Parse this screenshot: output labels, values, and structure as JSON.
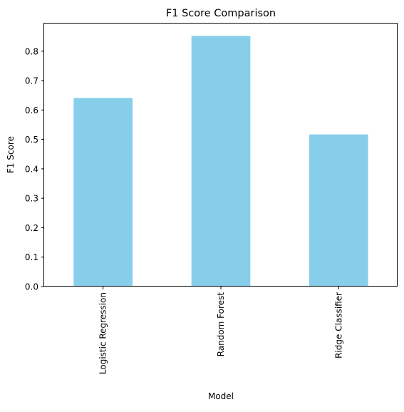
{
  "chart_data": {
    "type": "bar",
    "title": "F1 Score Comparison",
    "xlabel": "Model",
    "ylabel": "F1 Score",
    "categories": [
      "Logistic Regression",
      "Random Forest",
      "Ridge Classifier"
    ],
    "values": [
      0.641,
      0.852,
      0.517
    ],
    "ylim": [
      0,
      0.894
    ],
    "yticks": [
      0.0,
      0.1,
      0.2,
      0.3,
      0.4,
      0.5,
      0.6,
      0.7,
      0.8
    ],
    "ytick_labels": [
      "0.0",
      "0.1",
      "0.2",
      "0.3",
      "0.4",
      "0.5",
      "0.6",
      "0.7",
      "0.8"
    ],
    "bar_color": "#87ceeb",
    "grid": false,
    "legend": "none"
  }
}
